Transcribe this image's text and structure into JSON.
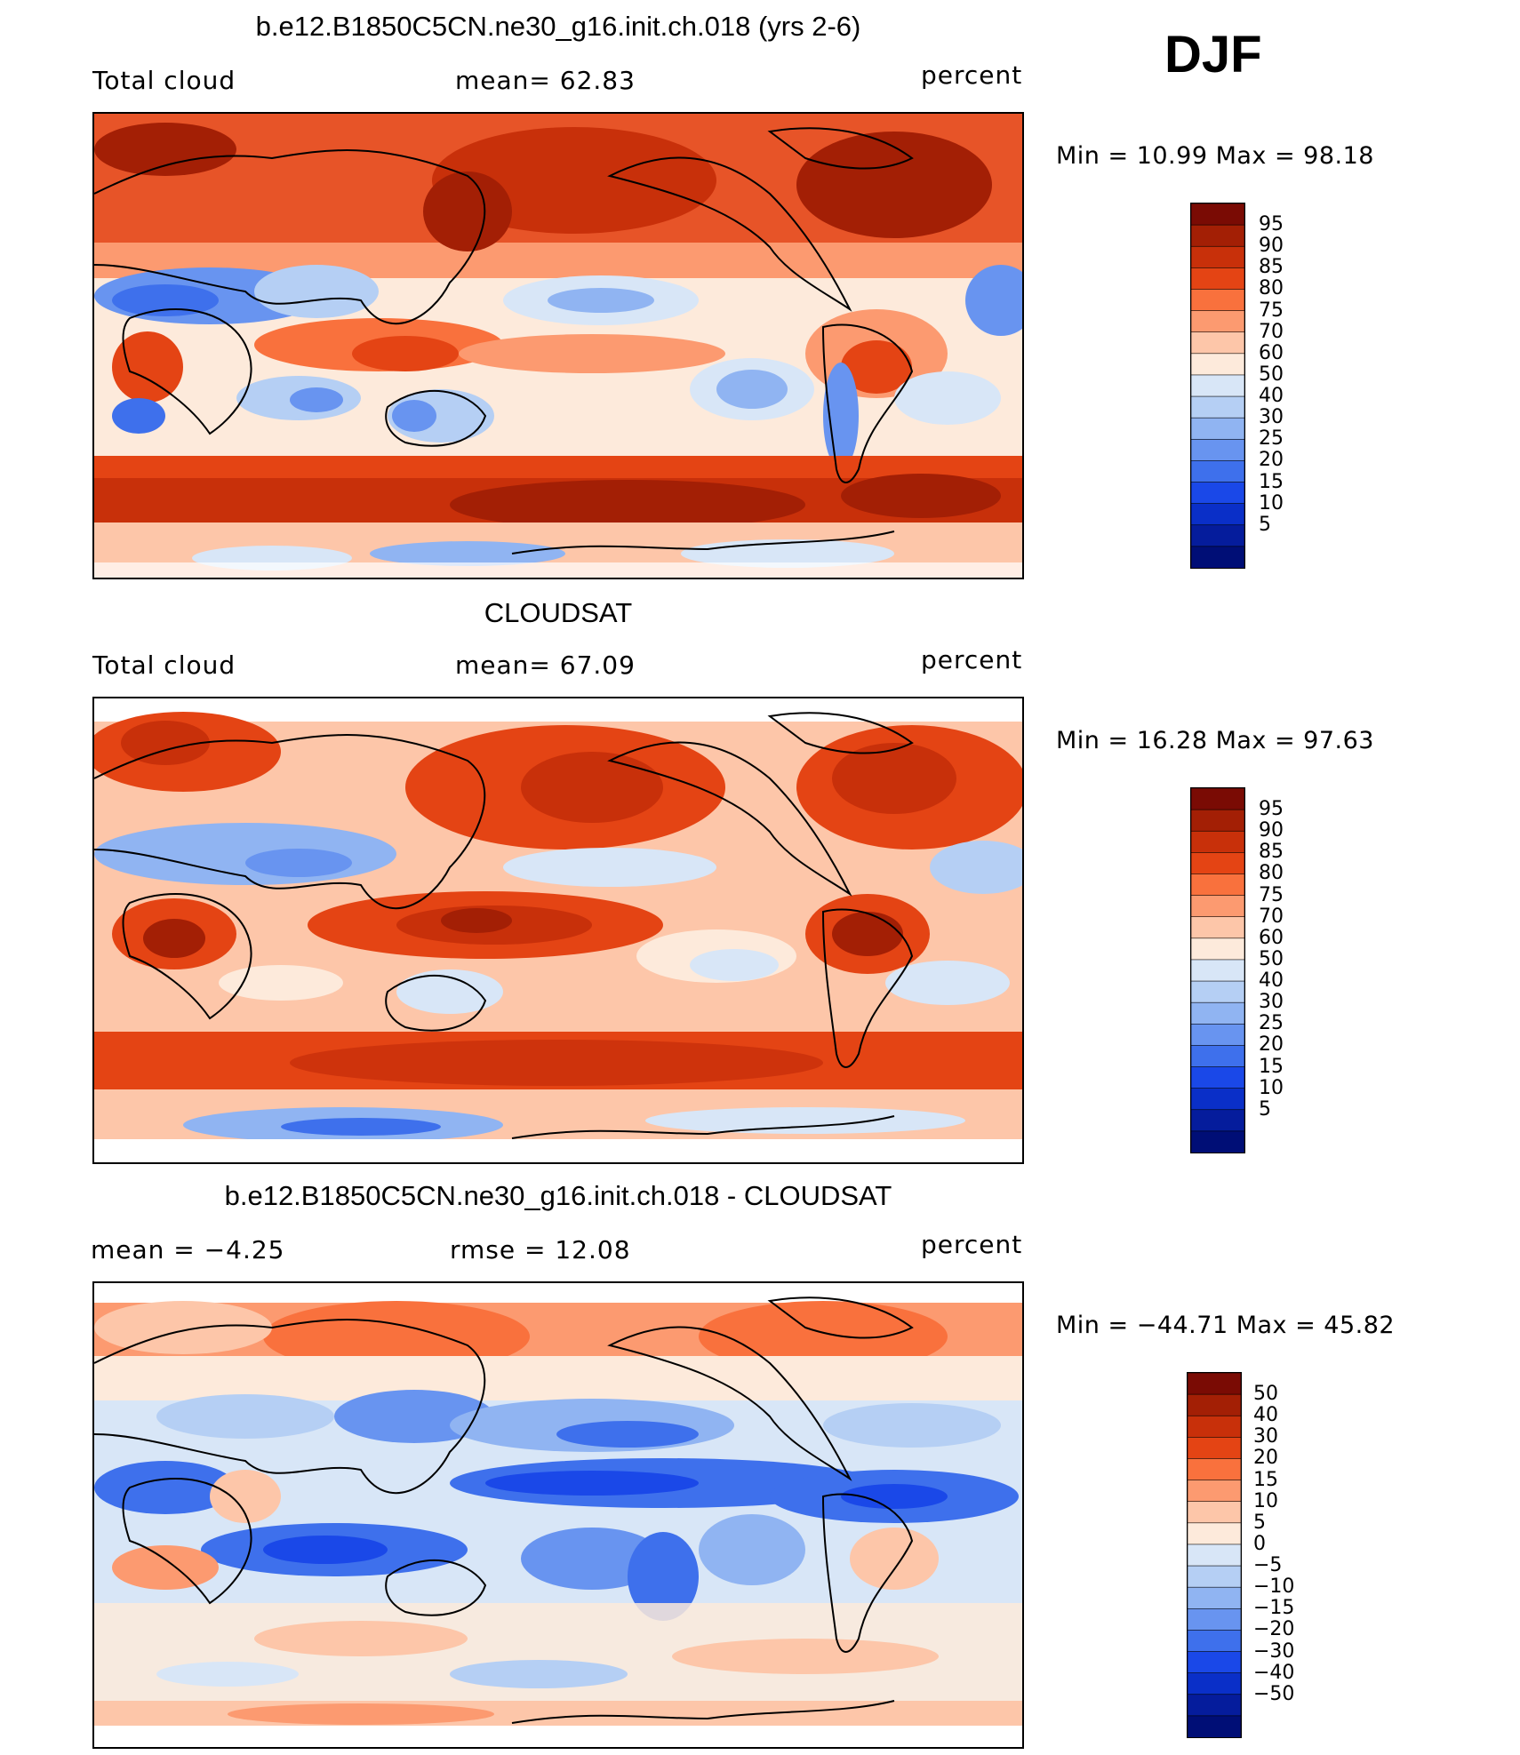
{
  "season": "DJF",
  "panels": [
    {
      "title": "b.e12.B1850C5CN.ne30_g16.init.ch.018 (yrs 2-6)",
      "left_label": "Total cloud",
      "center_label": "mean=  62.83",
      "right_label": "percent",
      "minmax": "Min =   10.99 Max =   98.18"
    },
    {
      "title": "CLOUDSAT",
      "left_label": "Total cloud",
      "center_label": "mean=  67.09",
      "right_label": "percent",
      "minmax": "Min =   16.28 Max =   97.63"
    },
    {
      "title": "b.e12.B1850C5CN.ne30_g16.init.ch.018 - CLOUDSAT",
      "left_label": "mean =   −4.25",
      "center_label": "rmse =   12.08",
      "right_label": "percent",
      "minmax": "Min = −44.71 Max =   45.82"
    }
  ],
  "colorbars": {
    "cloud": {
      "colors": [
        "#7a0b04",
        "#a31f05",
        "#c8300a",
        "#e44414",
        "#f9713d",
        "#fc9a70",
        "#fdc6a9",
        "#fdeadb",
        "#d8e6f7",
        "#b5cff4",
        "#90b4f2",
        "#6894f0",
        "#3e70ec",
        "#1a48e8",
        "#0a2fc8",
        "#051c9c",
        "#000e76"
      ],
      "labels": [
        "95",
        "90",
        "85",
        "80",
        "75",
        "70",
        "60",
        "50",
        "40",
        "30",
        "25",
        "20",
        "15",
        "10",
        "5"
      ]
    },
    "diff": {
      "colors": [
        "#7a0b04",
        "#a31f05",
        "#c8300a",
        "#e44414",
        "#f9713d",
        "#fc9a70",
        "#fdc6a9",
        "#fdeadb",
        "#d8e6f7",
        "#b5cff4",
        "#90b4f2",
        "#6894f0",
        "#3e70ec",
        "#1a48e8",
        "#0a2fc8",
        "#051c9c",
        "#000e76"
      ],
      "labels": [
        "50",
        "40",
        "30",
        "20",
        "15",
        "10",
        "5",
        "0",
        "−5",
        "−10",
        "−15",
        "−20",
        "−30",
        "−40",
        "−50"
      ]
    }
  },
  "chart_data": [
    {
      "type": "heatmap",
      "title": "b.e12.B1850C5CN.ne30_g16.init.ch.018 (yrs 2-6)",
      "variable": "Total cloud",
      "units": "percent",
      "mean": 62.83,
      "min": 10.99,
      "max": 98.18,
      "contour_levels": [
        5,
        10,
        15,
        20,
        25,
        30,
        40,
        50,
        60,
        70,
        75,
        80,
        85,
        90,
        95
      ]
    },
    {
      "type": "heatmap",
      "title": "CLOUDSAT",
      "variable": "Total cloud",
      "units": "percent",
      "mean": 67.09,
      "min": 16.28,
      "max": 97.63,
      "contour_levels": [
        5,
        10,
        15,
        20,
        25,
        30,
        40,
        50,
        60,
        70,
        75,
        80,
        85,
        90,
        95
      ]
    },
    {
      "type": "heatmap",
      "title": "b.e12.B1850C5CN.ne30_g16.init.ch.018 - CLOUDSAT",
      "units": "percent",
      "mean": -4.25,
      "rmse": 12.08,
      "min": -44.71,
      "max": 45.82,
      "contour_levels": [
        -50,
        -40,
        -30,
        -20,
        -15,
        -10,
        -5,
        0,
        5,
        10,
        15,
        20,
        30,
        40,
        50
      ]
    }
  ]
}
